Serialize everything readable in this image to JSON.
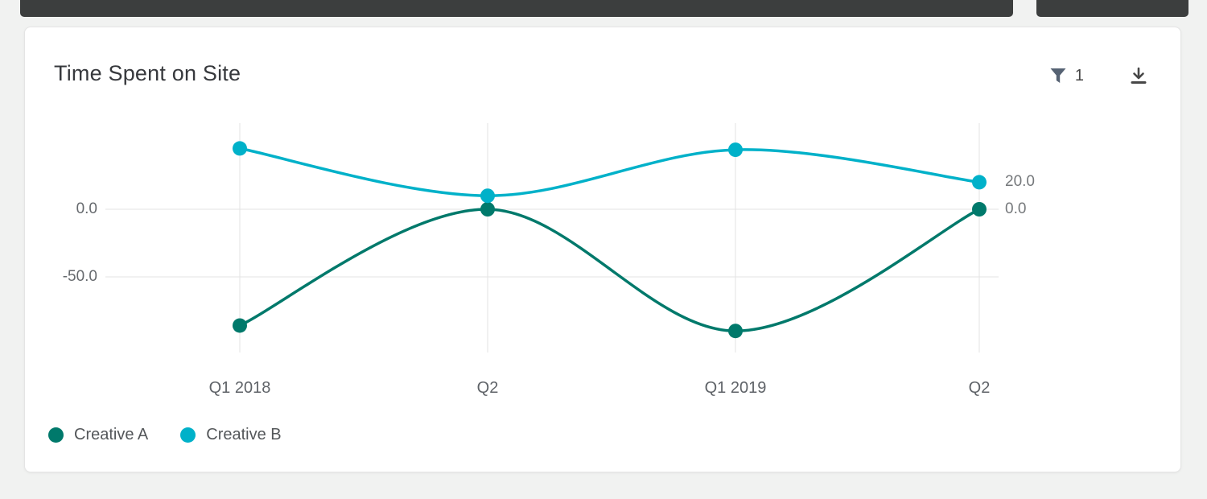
{
  "toolbar": {
    "filter_count": "1"
  },
  "chart_data": {
    "type": "line",
    "title": "Time Spent on Site",
    "categories": [
      "Q1 2018",
      "Q2",
      "Q1 2019",
      "Q2"
    ],
    "series": [
      {
        "name": "Creative A",
        "color": "#00796b",
        "values": [
          -86,
          0,
          -90,
          0
        ],
        "end_label": "0.0"
      },
      {
        "name": "Creative B",
        "color": "#00b1c9",
        "values": [
          45,
          10,
          44,
          20
        ],
        "end_label": "20.0"
      }
    ],
    "yticks": [
      {
        "value": 0,
        "label": "0.0"
      },
      {
        "value": -50,
        "label": "-50.0"
      }
    ],
    "ylim": [
      -105,
      65
    ],
    "grid": true,
    "legend_position": "bottom",
    "grid_color": "#e3e3e3"
  }
}
